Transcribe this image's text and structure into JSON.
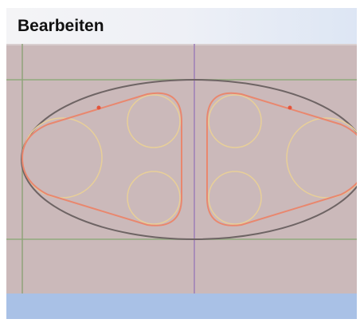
{
  "header": {
    "title": "Bearbeiten"
  }
}
